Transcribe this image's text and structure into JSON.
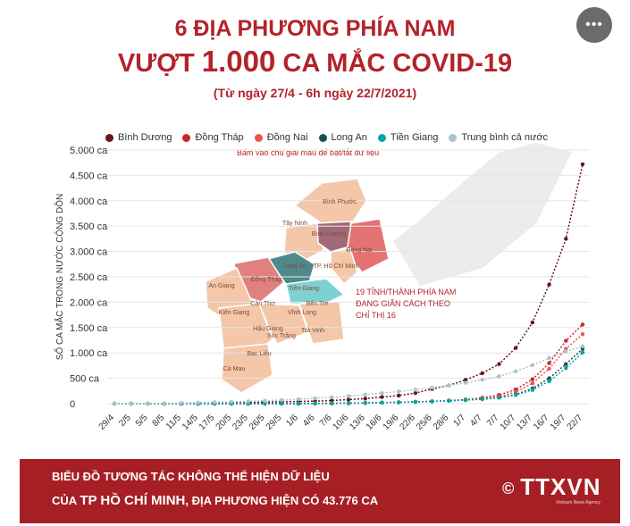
{
  "title_line1": "6 ĐỊA PHƯƠNG PHÍA NAM",
  "title_line2_pre": "VƯỢT",
  "title_line2_big": "1.000",
  "title_line2_post": "CA MẮC COVID-19",
  "subtitle": "(Từ ngày 27/4 - 6h ngày 22/7/2021)",
  "more_icon": "more-horizontal-icon",
  "more_text": "•••",
  "hint": "Bấm vào chú giải màu để bật/tắt dữ liệu",
  "map_note": [
    "19 TỈNH/THÀNH PHÍA NAM",
    "ĐANG GIÃN CÁCH THEO",
    "CHỈ THỊ 16"
  ],
  "map_labels": [
    "Bình Phước",
    "Tây Ninh",
    "Bình Dương",
    "Đồng Nai",
    "TP. Hồ Chí Minh",
    "Long An",
    "Đồng Tháp",
    "An Giang",
    "Tiền Giang",
    "Kiên Giang",
    "Cần Thơ",
    "Vĩnh Long",
    "Bến Tre",
    "Hậu Giang",
    "Trà Vinh",
    "Sóc Trăng",
    "Bạc Liêu",
    "Cà Mau"
  ],
  "footer": {
    "line1": "BIỂU ĐỒ TƯƠNG TÁC KHÔNG THỂ HIỆN DỮ LIỆU",
    "line2_a": "CỦA",
    "line2_hl": "TP HỒ CHÍ MINH",
    "line2_b": ", ĐỊA PHƯƠNG HIỆN CÓ 43.776 CA",
    "logo_symbol": "©",
    "logo": "TTXVN",
    "logo_sub": "Vietnam News Agency"
  },
  "colors": {
    "accent": "#b3232a",
    "footer_bg": "#a61f24"
  },
  "chart_data": {
    "type": "line",
    "ylabel": "SỐ CA MẮC TRONG NƯỚC CỘNG DỒN",
    "ylim": [
      0,
      5000
    ],
    "yticks": [
      "0",
      "500 ca",
      "1.000 ca",
      "1.500 ca",
      "2.000 ca",
      "2.500 ca",
      "3.000 ca",
      "3.500 ca",
      "4.000 ca",
      "4.500 ca",
      "5.000 ca"
    ],
    "categories": [
      "29/4",
      "2/5",
      "5/5",
      "8/5",
      "11/5",
      "14/5",
      "17/5",
      "20/5",
      "23/5",
      "26/5",
      "29/5",
      "1/6",
      "4/6",
      "7/6",
      "10/6",
      "13/6",
      "16/6",
      "19/6",
      "22/6",
      "25/6",
      "28/6",
      "1/7",
      "4/7",
      "7/7",
      "10/7",
      "13/7",
      "16/7",
      "19/7",
      "22/7"
    ],
    "grid": true,
    "legend_position": "top",
    "series": [
      {
        "name": "Bình Dương",
        "color": "#6b1317",
        "values": [
          0,
          0,
          0,
          0,
          2,
          5,
          10,
          14,
          22,
          30,
          36,
          42,
          50,
          62,
          80,
          100,
          130,
          160,
          210,
          290,
          360,
          470,
          600,
          780,
          1100,
          1600,
          2350,
          3250,
          4720
        ]
      },
      {
        "name": "Đồng Tháp",
        "color": "#c62828",
        "values": [
          0,
          0,
          0,
          0,
          0,
          0,
          0,
          0,
          0,
          0,
          0,
          1,
          2,
          4,
          8,
          14,
          20,
          28,
          36,
          46,
          60,
          80,
          115,
          170,
          280,
          480,
          800,
          1240,
          1560
        ]
      },
      {
        "name": "Đồng Nai",
        "color": "#ef5350",
        "values": [
          0,
          0,
          0,
          0,
          0,
          0,
          0,
          0,
          0,
          0,
          0,
          1,
          2,
          4,
          8,
          14,
          20,
          28,
          36,
          46,
          56,
          72,
          98,
          140,
          230,
          400,
          690,
          1080,
          1370
        ]
      },
      {
        "name": "Long An",
        "color": "#1f4e5b",
        "values": [
          0,
          0,
          0,
          0,
          0,
          0,
          0,
          0,
          0,
          0,
          1,
          2,
          4,
          7,
          10,
          14,
          20,
          26,
          34,
          44,
          56,
          72,
          90,
          120,
          180,
          300,
          500,
          780,
          1080
        ]
      },
      {
        "name": "Tiền Giang",
        "color": "#00a6a6",
        "values": [
          0,
          0,
          0,
          0,
          0,
          0,
          0,
          0,
          0,
          0,
          1,
          2,
          4,
          7,
          10,
          14,
          20,
          26,
          34,
          44,
          56,
          70,
          88,
          115,
          170,
          270,
          440,
          700,
          1010
        ]
      },
      {
        "name": "Trung bình cả nước",
        "color": "#a9c3cf",
        "values": [
          0,
          2,
          4,
          8,
          14,
          20,
          28,
          36,
          46,
          58,
          72,
          88,
          106,
          126,
          150,
          178,
          208,
          240,
          276,
          316,
          360,
          410,
          470,
          540,
          640,
          760,
          900,
          1030,
          1130
        ]
      }
    ]
  }
}
